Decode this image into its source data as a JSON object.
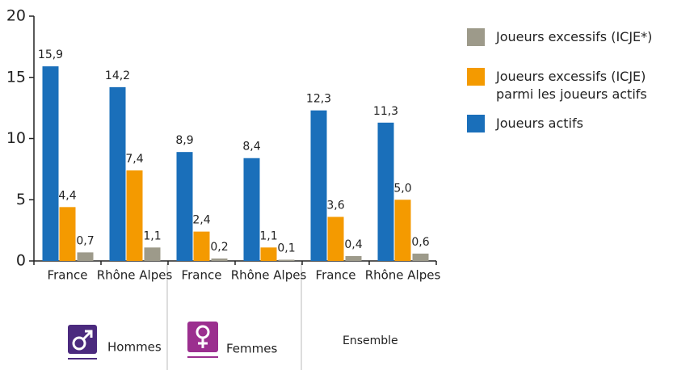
{
  "chart_data": {
    "type": "bar",
    "categories": [
      "France",
      "Rhône Alpes",
      "France",
      "Rhône Alpes",
      "France",
      "Rhône Alpes"
    ],
    "groups": [
      "Hommes",
      "Femmes",
      "Ensemble"
    ],
    "series": [
      {
        "name": "Joueurs actifs",
        "color": "#1a6fba",
        "values": [
          15.9,
          14.2,
          8.9,
          8.4,
          12.3,
          11.3
        ],
        "value_labels": [
          "15,9",
          "14,2",
          "8,9",
          "8,4",
          "12,3",
          "11,3"
        ]
      },
      {
        "name": "Joueurs excessifs (ICJE) parmi les joueurs actifs",
        "color": "#f49a00",
        "values": [
          4.4,
          7.4,
          2.4,
          1.1,
          3.6,
          5.0
        ],
        "value_labels": [
          "4,4",
          "7,4",
          "2,4",
          "1,1",
          "3,6",
          "5,0"
        ]
      },
      {
        "name": "Joueurs excessifs (ICJE*)",
        "color": "#9d9a8a",
        "values": [
          0.7,
          1.1,
          0.2,
          0.1,
          0.4,
          0.6
        ],
        "value_labels": [
          "0,7",
          "1,1",
          "0,2",
          "0,1",
          "0,4",
          "0,6"
        ]
      }
    ],
    "ylim": [
      0,
      20
    ],
    "yticks": [
      0,
      5,
      10,
      15,
      20
    ]
  }
}
